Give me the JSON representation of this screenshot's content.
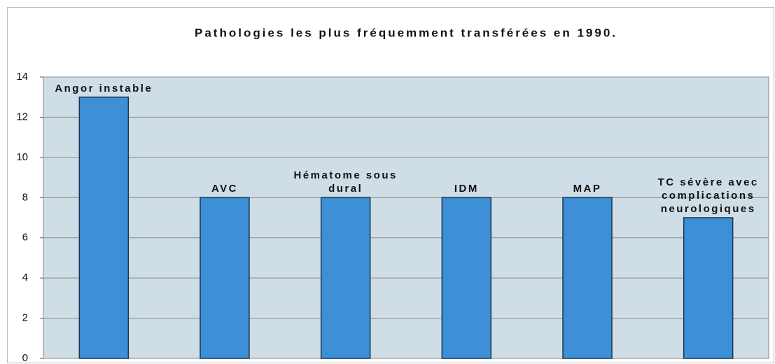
{
  "chart_data": {
    "type": "bar",
    "title": "Pathologies les plus fréquemment transférées en 1990.",
    "categories": [
      "Angor instable",
      "AVC",
      "Hématome sous dural",
      "IDM",
      "MAP",
      "TC sévère avec complications neurologiques"
    ],
    "values": [
      13,
      8,
      8,
      8,
      8,
      7
    ],
    "color": "#3d8fd6",
    "ylim": [
      0,
      14
    ],
    "yticks": [
      0,
      2,
      4,
      6,
      8,
      10,
      12,
      14
    ],
    "grid": true
  }
}
